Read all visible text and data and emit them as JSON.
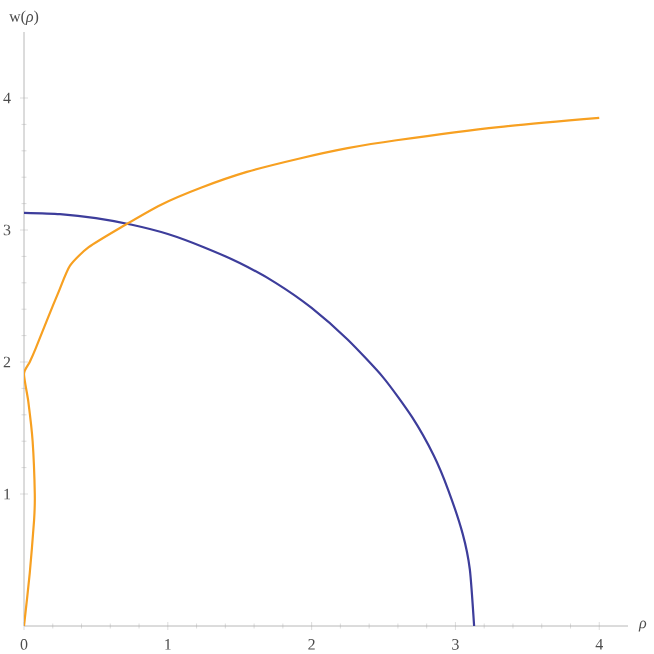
{
  "chart_data": {
    "type": "line",
    "xlabel": "*ρ*",
    "ylabel": "w(*ρ*)",
    "xlim": [
      0,
      4.2
    ],
    "ylim": [
      0,
      4.5
    ],
    "xticks": [
      0,
      1,
      2,
      3,
      4
    ],
    "yticks": [
      1,
      2,
      3,
      4
    ],
    "series": [
      {
        "color": "#3d3d9b",
        "x": [
          0,
          0.25,
          0.5,
          0.75,
          1,
          1.25,
          1.5,
          1.75,
          2,
          2.25,
          2.5,
          2.7,
          2.85,
          2.95,
          3.05,
          3.1,
          3.13
        ],
        "values": [
          3.13,
          3.12,
          3.09,
          3.04,
          2.97,
          2.87,
          2.75,
          2.6,
          2.41,
          2.17,
          1.88,
          1.58,
          1.29,
          1.03,
          0.7,
          0.43,
          0
        ]
      },
      {
        "color": "#f7a021",
        "x": [
          0,
          0.04,
          0.07,
          0.075,
          0.06,
          0.03,
          0,
          0.04,
          0.08,
          0.165,
          0.24,
          0.32,
          0.45,
          0.69,
          0.95,
          1.23,
          1.55,
          1.91,
          2.25,
          2.59,
          3.3,
          4.0
        ],
        "values": [
          0,
          0.4,
          0.8,
          1.0,
          1.4,
          1.7,
          1.91,
          2.0,
          2.1,
          2.33,
          2.53,
          2.73,
          2.87,
          3.03,
          3.19,
          3.32,
          3.44,
          3.54,
          3.62,
          3.68,
          3.78,
          3.85
        ]
      }
    ]
  }
}
